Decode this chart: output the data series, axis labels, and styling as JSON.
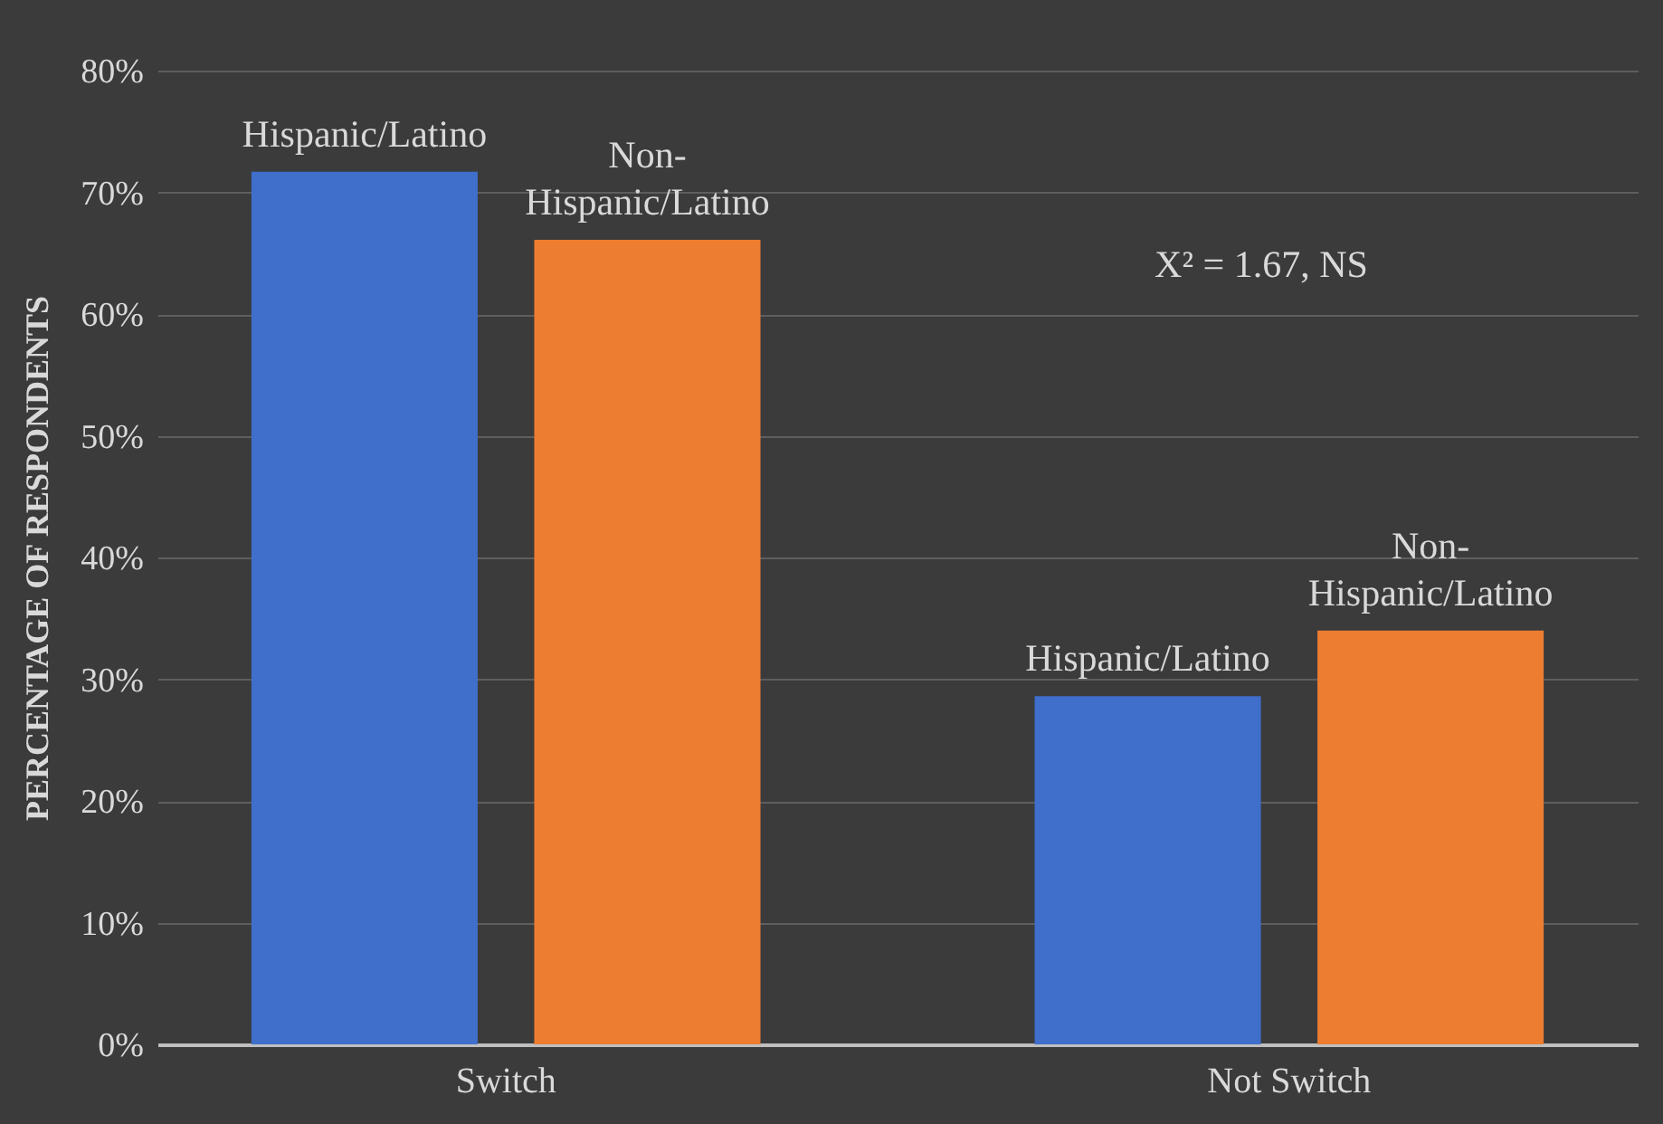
{
  "chart_data": {
    "type": "bar",
    "ylabel": "PERCENTAGE OF RESPONDENTS",
    "categories": [
      "Switch",
      "Not Switch"
    ],
    "series": [
      {
        "name": "Hispanic/Latino",
        "color": "#3f6ecb",
        "values": [
          71.7,
          28.6
        ]
      },
      {
        "name": "Non-Hispanic/Latino",
        "color": "#ed7d31",
        "values": [
          66.1,
          34.0
        ]
      }
    ],
    "ylim": [
      0,
      80
    ],
    "yticks": [
      {
        "value": 0,
        "label": "0%"
      },
      {
        "value": 10,
        "label": "10%"
      },
      {
        "value": 20,
        "label": "20%"
      },
      {
        "value": 30,
        "label": "30%"
      },
      {
        "value": 40,
        "label": "40%"
      },
      {
        "value": 50,
        "label": "50%"
      },
      {
        "value": 60,
        "label": "60%"
      },
      {
        "value": 70,
        "label": "70%"
      },
      {
        "value": 80,
        "label": "80%"
      }
    ],
    "grid": "y",
    "legend": false,
    "annotations": [
      "X² = 1.67,  NS"
    ]
  }
}
